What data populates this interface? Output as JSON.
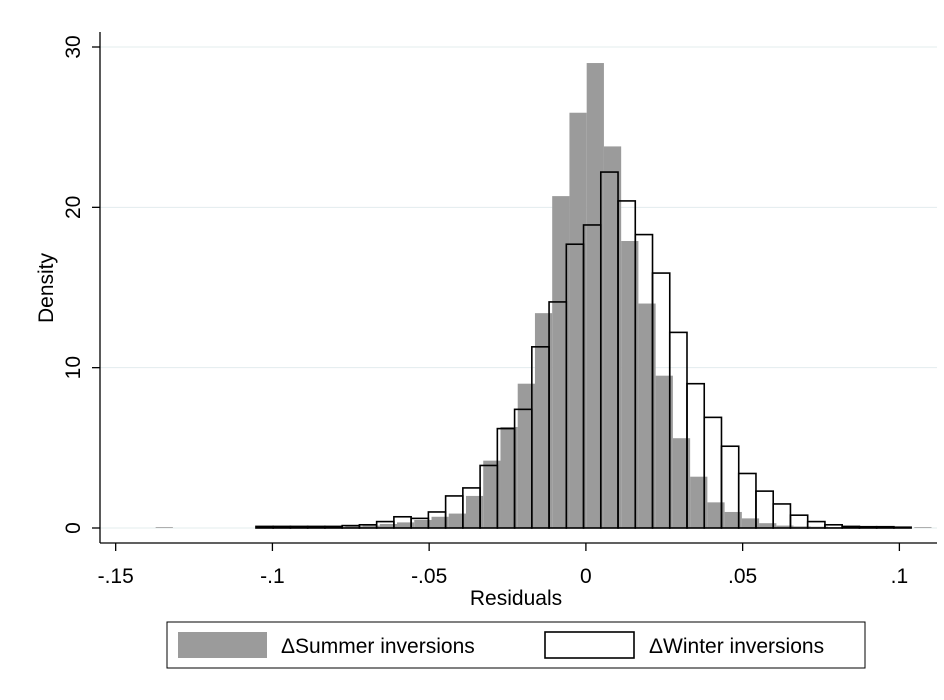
{
  "chart_data": {
    "type": "bar",
    "xlabel": "Residuals",
    "ylabel": "Density",
    "xlim": [
      -0.155,
      0.112
    ],
    "ylim": [
      0,
      31
    ],
    "x_ticks": [
      {
        "value": -0.15,
        "label": "-.15"
      },
      {
        "value": -0.1,
        "label": "-.1"
      },
      {
        "value": -0.05,
        "label": "-.05"
      },
      {
        "value": 0,
        "label": "0"
      },
      {
        "value": 0.05,
        "label": ".05"
      },
      {
        "value": 0.1,
        "label": ".1"
      }
    ],
    "y_ticks": [
      {
        "value": 0,
        "label": "0"
      },
      {
        "value": 10,
        "label": "10"
      },
      {
        "value": 20,
        "label": "20"
      },
      {
        "value": 30,
        "label": "30"
      }
    ],
    "grid": "horizontal",
    "legend_position": "bottom",
    "series": [
      {
        "name": "ΔSummer inversions",
        "style": "filled",
        "color": "#9b9b9b",
        "bin_width": 0.0055,
        "bins": [
          {
            "x": -0.1345,
            "y": 0.05
          },
          {
            "x": -0.1015,
            "y": 0.05
          },
          {
            "x": -0.096,
            "y": 0.05
          },
          {
            "x": -0.0905,
            "y": 0.05
          },
          {
            "x": -0.085,
            "y": 0.05
          },
          {
            "x": -0.0795,
            "y": 0.05
          },
          {
            "x": -0.074,
            "y": 0.1
          },
          {
            "x": -0.0685,
            "y": 0.15
          },
          {
            "x": -0.063,
            "y": 0.25
          },
          {
            "x": -0.0575,
            "y": 0.35
          },
          {
            "x": -0.052,
            "y": 0.5
          },
          {
            "x": -0.0465,
            "y": 0.7
          },
          {
            "x": -0.041,
            "y": 0.9
          },
          {
            "x": -0.0355,
            "y": 2.0
          },
          {
            "x": -0.03,
            "y": 4.2
          },
          {
            "x": -0.0245,
            "y": 6.3
          },
          {
            "x": -0.019,
            "y": 9.0
          },
          {
            "x": -0.0135,
            "y": 13.4
          },
          {
            "x": -0.008,
            "y": 20.7
          },
          {
            "x": -0.0025,
            "y": 25.9
          },
          {
            "x": 0.003,
            "y": 29.0
          },
          {
            "x": 0.0085,
            "y": 23.8
          },
          {
            "x": 0.014,
            "y": 17.9
          },
          {
            "x": 0.0195,
            "y": 14.0
          },
          {
            "x": 0.025,
            "y": 9.5
          },
          {
            "x": 0.0305,
            "y": 5.6
          },
          {
            "x": 0.036,
            "y": 3.2
          },
          {
            "x": 0.0415,
            "y": 1.6
          },
          {
            "x": 0.047,
            "y": 1.0
          },
          {
            "x": 0.0525,
            "y": 0.6
          },
          {
            "x": 0.058,
            "y": 0.3
          },
          {
            "x": 0.0635,
            "y": 0.15
          },
          {
            "x": 0.069,
            "y": 0.1
          },
          {
            "x": 0.0745,
            "y": 0.08
          },
          {
            "x": 0.08,
            "y": 0.05
          },
          {
            "x": 0.0905,
            "y": 0.05
          },
          {
            "x": 0.096,
            "y": 0.05
          },
          {
            "x": 0.1075,
            "y": 0.05
          }
        ]
      },
      {
        "name": "ΔWinter inversions",
        "style": "outline",
        "color": "#000000",
        "bin_width": 0.0055,
        "bins": [
          {
            "x": -0.1025,
            "y": 0.1
          },
          {
            "x": -0.097,
            "y": 0.1
          },
          {
            "x": -0.0915,
            "y": 0.1
          },
          {
            "x": -0.086,
            "y": 0.1
          },
          {
            "x": -0.0805,
            "y": 0.1
          },
          {
            "x": -0.075,
            "y": 0.15
          },
          {
            "x": -0.0695,
            "y": 0.2
          },
          {
            "x": -0.064,
            "y": 0.4
          },
          {
            "x": -0.0585,
            "y": 0.7
          },
          {
            "x": -0.053,
            "y": 0.6
          },
          {
            "x": -0.0475,
            "y": 1.0
          },
          {
            "x": -0.042,
            "y": 2.0
          },
          {
            "x": -0.0365,
            "y": 2.5
          },
          {
            "x": -0.031,
            "y": 3.9
          },
          {
            "x": -0.0255,
            "y": 6.2
          },
          {
            "x": -0.02,
            "y": 7.4
          },
          {
            "x": -0.0145,
            "y": 11.3
          },
          {
            "x": -0.009,
            "y": 14.1
          },
          {
            "x": -0.0035,
            "y": 17.7
          },
          {
            "x": 0.002,
            "y": 18.9
          },
          {
            "x": 0.0075,
            "y": 22.2
          },
          {
            "x": 0.013,
            "y": 20.4
          },
          {
            "x": 0.0185,
            "y": 18.3
          },
          {
            "x": 0.024,
            "y": 15.9
          },
          {
            "x": 0.0295,
            "y": 12.2
          },
          {
            "x": 0.035,
            "y": 9.0
          },
          {
            "x": 0.0405,
            "y": 6.9
          },
          {
            "x": 0.046,
            "y": 5.1
          },
          {
            "x": 0.0515,
            "y": 3.4
          },
          {
            "x": 0.057,
            "y": 2.3
          },
          {
            "x": 0.0625,
            "y": 1.5
          },
          {
            "x": 0.068,
            "y": 0.8
          },
          {
            "x": 0.0735,
            "y": 0.4
          },
          {
            "x": 0.079,
            "y": 0.2
          },
          {
            "x": 0.0845,
            "y": 0.1
          },
          {
            "x": 0.09,
            "y": 0.08
          },
          {
            "x": 0.0955,
            "y": 0.08
          },
          {
            "x": 0.101,
            "y": 0.05
          }
        ]
      }
    ]
  }
}
